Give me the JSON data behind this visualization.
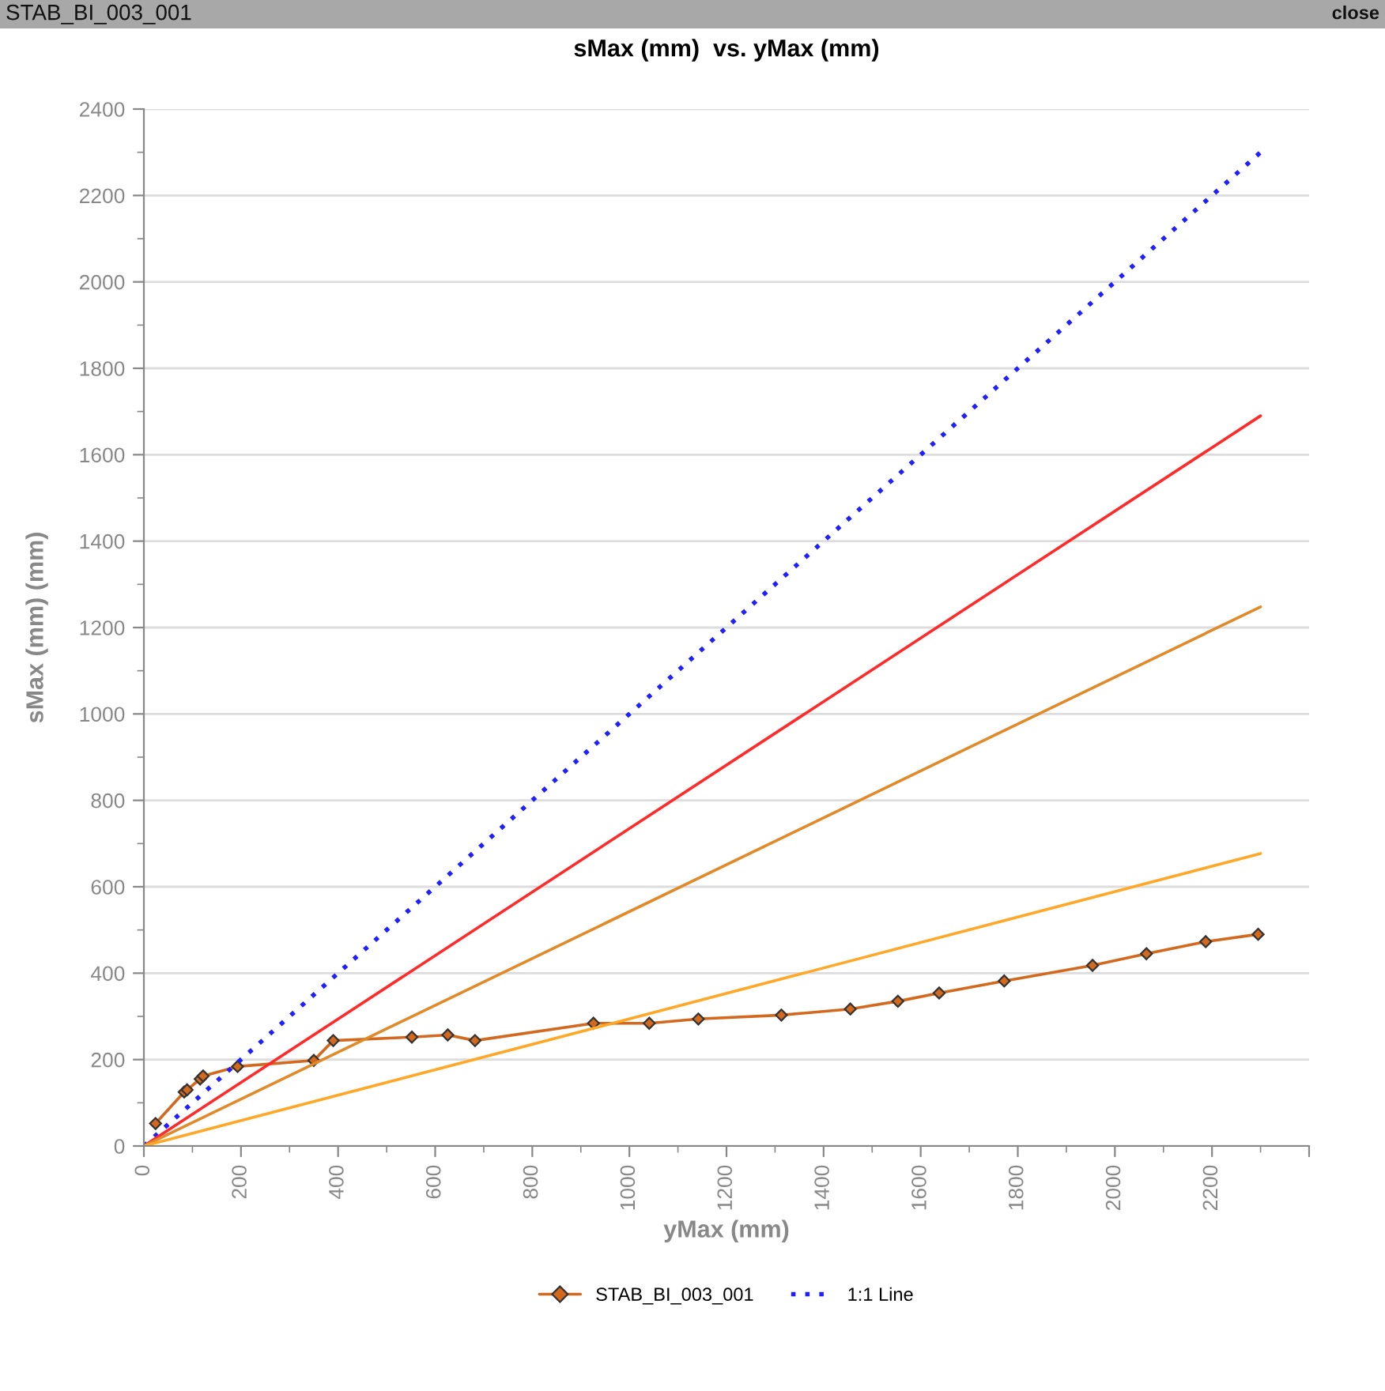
{
  "chart_data": {
    "type": "line",
    "title": "sMax (mm)  vs. yMax (mm)",
    "xlabel": "yMax (mm)",
    "ylabel": "sMax (mm) (mm)",
    "annotations": [
      "STAB_BI_003_001",
      "close"
    ],
    "series": [
      {
        "name": "STAB_BI_003_001",
        "color": "#d2691e",
        "marker": "diamond",
        "line_style": "solid",
        "x": [
          24,
          83,
          89,
          116,
          122,
          193,
          350,
          390,
          552,
          626,
          682,
          926,
          1041,
          1142,
          1313,
          1455,
          1553,
          1638,
          1772,
          1954,
          2065,
          2187,
          2295
        ],
        "values": [
          52,
          125,
          130,
          155,
          162,
          184,
          198,
          244,
          252,
          257,
          244,
          284,
          284,
          294,
          303,
          317,
          335,
          354,
          382,
          418,
          445,
          473,
          490
        ]
      },
      {
        "name": "1:1 Line",
        "color": "#1f1fff",
        "marker": "none",
        "line_style": "dotted",
        "x": [
          0,
          2300
        ],
        "values": [
          0,
          2300
        ]
      },
      {
        "color": "#ff2a2a",
        "marker": "none",
        "line_style": "solid",
        "x": [
          0,
          2300
        ],
        "values": [
          0,
          1690
        ]
      },
      {
        "color": "#e08a2a",
        "marker": "none",
        "line_style": "solid",
        "x": [
          0,
          2300
        ],
        "values": [
          0,
          1248
        ]
      },
      {
        "color": "#ffa726",
        "marker": "none",
        "line_style": "solid",
        "x": [
          0,
          2300
        ],
        "values": [
          0,
          677
        ]
      }
    ],
    "xlim": [
      0,
      2400
    ],
    "ylim": [
      0,
      2400
    ],
    "xticks": [
      0,
      200,
      400,
      600,
      800,
      1000,
      1200,
      1400,
      1600,
      1800,
      2000,
      2200,
      {
        "value": 2400,
        "label": null
      }
    ],
    "yticks": [
      0,
      200,
      400,
      600,
      800,
      1000,
      1200,
      1400,
      1600,
      1800,
      2000,
      2200,
      2400
    ],
    "grid": "y",
    "legend": "bottom"
  }
}
